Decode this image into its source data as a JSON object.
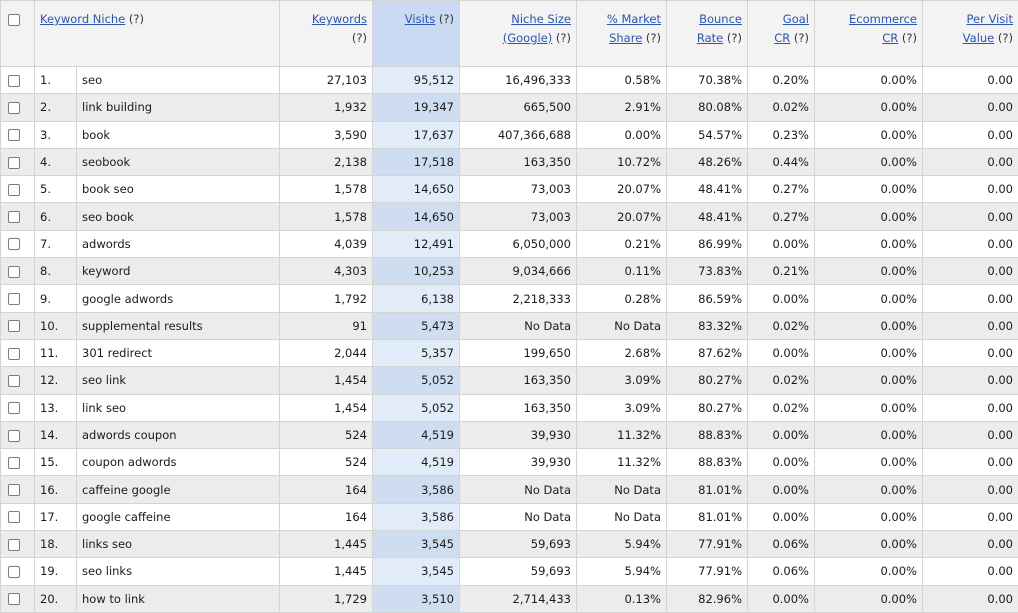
{
  "columns": {
    "keyword_niche": {
      "label": "Keyword Niche",
      "help": "(?)"
    },
    "keywords": {
      "label": "Keywords",
      "help": "(?)"
    },
    "visits": {
      "label": "Visits",
      "help": "(?)"
    },
    "niche_size": {
      "label": "Niche Size",
      "label2": "(Google)",
      "help": "(?)"
    },
    "market_share": {
      "label": "% Market",
      "label2": "Share",
      "help": "(?)"
    },
    "bounce_rate": {
      "label": "Bounce",
      "label2": "Rate",
      "help": "(?)"
    },
    "goal_cr": {
      "label": "Goal",
      "label2": "CR",
      "help": "(?)"
    },
    "ecommerce_cr": {
      "label": "Ecommerce",
      "label2": "CR",
      "help": "(?)"
    },
    "per_visit_value": {
      "label": "Per Visit",
      "label2": "Value",
      "help": "(?)"
    }
  },
  "rows": [
    {
      "rank": "1.",
      "keyword": "seo",
      "keywords": "27,103",
      "visits": "95,512",
      "niche_size": "16,496,333",
      "market_share": "0.58%",
      "bounce_rate": "70.38%",
      "goal_cr": "0.20%",
      "ecommerce_cr": "0.00%",
      "per_visit_value": "0.00"
    },
    {
      "rank": "2.",
      "keyword": "link building",
      "keywords": "1,932",
      "visits": "19,347",
      "niche_size": "665,500",
      "market_share": "2.91%",
      "bounce_rate": "80.08%",
      "goal_cr": "0.02%",
      "ecommerce_cr": "0.00%",
      "per_visit_value": "0.00"
    },
    {
      "rank": "3.",
      "keyword": "book",
      "keywords": "3,590",
      "visits": "17,637",
      "niche_size": "407,366,688",
      "market_share": "0.00%",
      "bounce_rate": "54.57%",
      "goal_cr": "0.23%",
      "ecommerce_cr": "0.00%",
      "per_visit_value": "0.00"
    },
    {
      "rank": "4.",
      "keyword": "seobook",
      "keywords": "2,138",
      "visits": "17,518",
      "niche_size": "163,350",
      "market_share": "10.72%",
      "bounce_rate": "48.26%",
      "goal_cr": "0.44%",
      "ecommerce_cr": "0.00%",
      "per_visit_value": "0.00"
    },
    {
      "rank": "5.",
      "keyword": "book seo",
      "keywords": "1,578",
      "visits": "14,650",
      "niche_size": "73,003",
      "market_share": "20.07%",
      "bounce_rate": "48.41%",
      "goal_cr": "0.27%",
      "ecommerce_cr": "0.00%",
      "per_visit_value": "0.00"
    },
    {
      "rank": "6.",
      "keyword": "seo book",
      "keywords": "1,578",
      "visits": "14,650",
      "niche_size": "73,003",
      "market_share": "20.07%",
      "bounce_rate": "48.41%",
      "goal_cr": "0.27%",
      "ecommerce_cr": "0.00%",
      "per_visit_value": "0.00"
    },
    {
      "rank": "7.",
      "keyword": "adwords",
      "keywords": "4,039",
      "visits": "12,491",
      "niche_size": "6,050,000",
      "market_share": "0.21%",
      "bounce_rate": "86.99%",
      "goal_cr": "0.00%",
      "ecommerce_cr": "0.00%",
      "per_visit_value": "0.00"
    },
    {
      "rank": "8.",
      "keyword": "keyword",
      "keywords": "4,303",
      "visits": "10,253",
      "niche_size": "9,034,666",
      "market_share": "0.11%",
      "bounce_rate": "73.83%",
      "goal_cr": "0.21%",
      "ecommerce_cr": "0.00%",
      "per_visit_value": "0.00"
    },
    {
      "rank": "9.",
      "keyword": "google adwords",
      "keywords": "1,792",
      "visits": "6,138",
      "niche_size": "2,218,333",
      "market_share": "0.28%",
      "bounce_rate": "86.59%",
      "goal_cr": "0.00%",
      "ecommerce_cr": "0.00%",
      "per_visit_value": "0.00"
    },
    {
      "rank": "10.",
      "keyword": "supplemental results",
      "keywords": "91",
      "visits": "5,473",
      "niche_size": "No Data",
      "market_share": "No Data",
      "bounce_rate": "83.32%",
      "goal_cr": "0.02%",
      "ecommerce_cr": "0.00%",
      "per_visit_value": "0.00"
    },
    {
      "rank": "11.",
      "keyword": "301 redirect",
      "keywords": "2,044",
      "visits": "5,357",
      "niche_size": "199,650",
      "market_share": "2.68%",
      "bounce_rate": "87.62%",
      "goal_cr": "0.00%",
      "ecommerce_cr": "0.00%",
      "per_visit_value": "0.00"
    },
    {
      "rank": "12.",
      "keyword": "seo link",
      "keywords": "1,454",
      "visits": "5,052",
      "niche_size": "163,350",
      "market_share": "3.09%",
      "bounce_rate": "80.27%",
      "goal_cr": "0.02%",
      "ecommerce_cr": "0.00%",
      "per_visit_value": "0.00"
    },
    {
      "rank": "13.",
      "keyword": "link seo",
      "keywords": "1,454",
      "visits": "5,052",
      "niche_size": "163,350",
      "market_share": "3.09%",
      "bounce_rate": "80.27%",
      "goal_cr": "0.02%",
      "ecommerce_cr": "0.00%",
      "per_visit_value": "0.00"
    },
    {
      "rank": "14.",
      "keyword": "adwords coupon",
      "keywords": "524",
      "visits": "4,519",
      "niche_size": "39,930",
      "market_share": "11.32%",
      "bounce_rate": "88.83%",
      "goal_cr": "0.00%",
      "ecommerce_cr": "0.00%",
      "per_visit_value": "0.00"
    },
    {
      "rank": "15.",
      "keyword": "coupon adwords",
      "keywords": "524",
      "visits": "4,519",
      "niche_size": "39,930",
      "market_share": "11.32%",
      "bounce_rate": "88.83%",
      "goal_cr": "0.00%",
      "ecommerce_cr": "0.00%",
      "per_visit_value": "0.00"
    },
    {
      "rank": "16.",
      "keyword": "caffeine google",
      "keywords": "164",
      "visits": "3,586",
      "niche_size": "No Data",
      "market_share": "No Data",
      "bounce_rate": "81.01%",
      "goal_cr": "0.00%",
      "ecommerce_cr": "0.00%",
      "per_visit_value": "0.00"
    },
    {
      "rank": "17.",
      "keyword": "google caffeine",
      "keywords": "164",
      "visits": "3,586",
      "niche_size": "No Data",
      "market_share": "No Data",
      "bounce_rate": "81.01%",
      "goal_cr": "0.00%",
      "ecommerce_cr": "0.00%",
      "per_visit_value": "0.00"
    },
    {
      "rank": "18.",
      "keyword": "links seo",
      "keywords": "1,445",
      "visits": "3,545",
      "niche_size": "59,693",
      "market_share": "5.94%",
      "bounce_rate": "77.91%",
      "goal_cr": "0.06%",
      "ecommerce_cr": "0.00%",
      "per_visit_value": "0.00"
    },
    {
      "rank": "19.",
      "keyword": "seo links",
      "keywords": "1,445",
      "visits": "3,545",
      "niche_size": "59,693",
      "market_share": "5.94%",
      "bounce_rate": "77.91%",
      "goal_cr": "0.06%",
      "ecommerce_cr": "0.00%",
      "per_visit_value": "0.00"
    },
    {
      "rank": "20.",
      "keyword": "how to link",
      "keywords": "1,729",
      "visits": "3,510",
      "niche_size": "2,714,433",
      "market_share": "0.13%",
      "bounce_rate": "82.96%",
      "goal_cr": "0.00%",
      "ecommerce_cr": "0.00%",
      "per_visit_value": "0.00"
    }
  ]
}
